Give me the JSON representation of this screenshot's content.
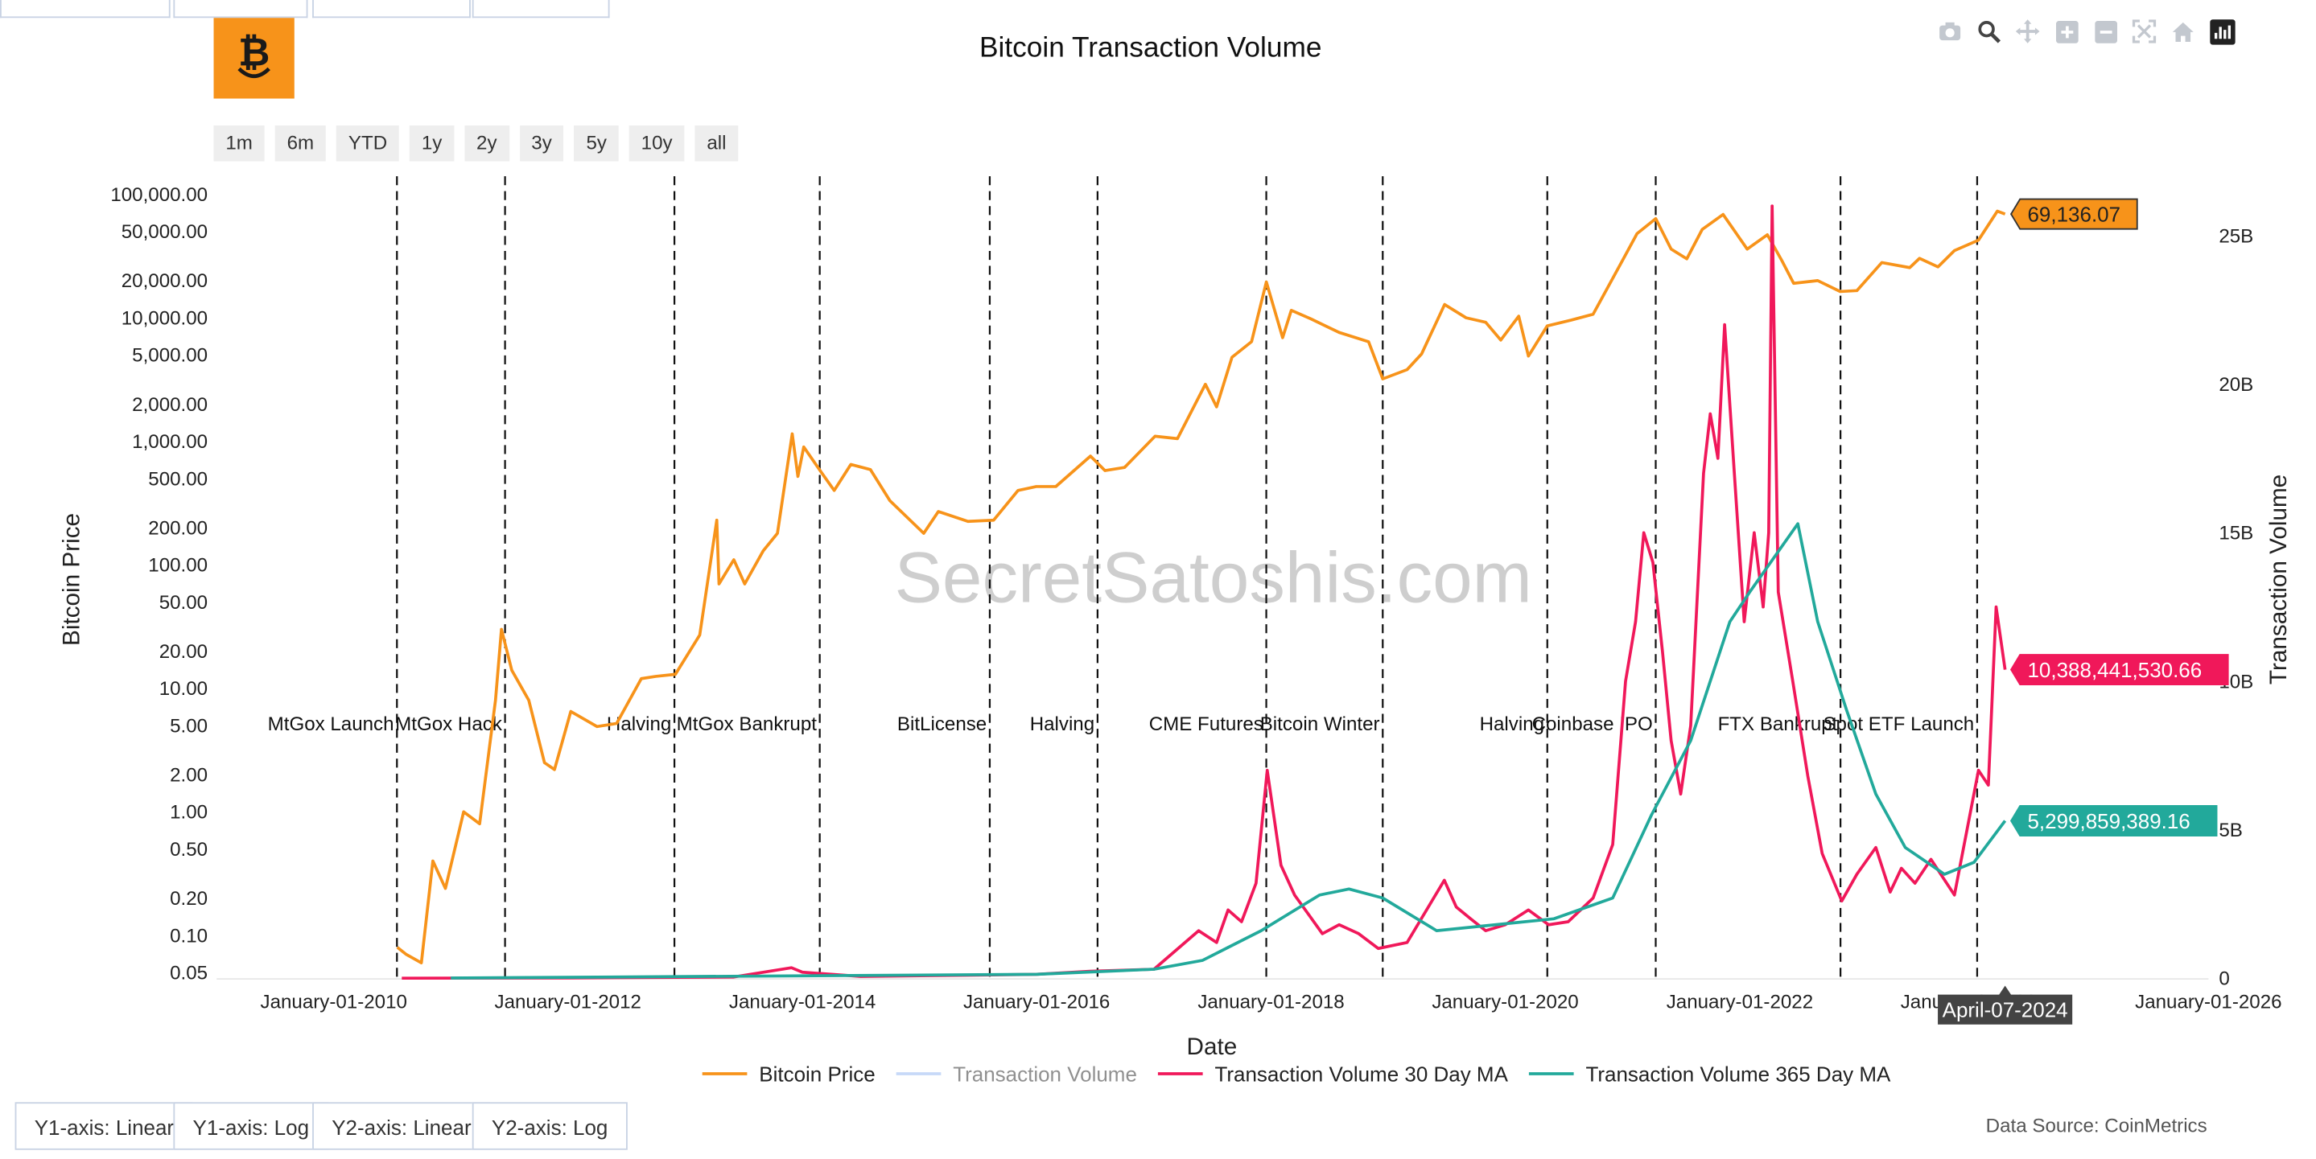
{
  "logo": {
    "icon": "bitcoin-smile-icon",
    "color": "#f7931a"
  },
  "title": "Bitcoin Transaction Volume",
  "range_buttons": [
    "1m",
    "6m",
    "YTD",
    "1y",
    "2y",
    "3y",
    "5y",
    "10y",
    "all"
  ],
  "modebar": [
    "camera-icon",
    "zoom-icon",
    "pan-icon",
    "zoom-in-icon",
    "zoom-out-icon",
    "autoscale-icon",
    "reset-axes-icon",
    "plotly-logo-icon"
  ],
  "axis_buttons": [
    "Y1-axis: Linear",
    "Y1-axis: Log",
    "Y2-axis: Linear",
    "Y2-axis: Log"
  ],
  "data_source": "Data Source: CoinMetrics",
  "watermark": "SecretSatoshis.com",
  "hover_date": "April-07-2024",
  "colors": {
    "price": "#f7931a",
    "volume": "#8fb4f2",
    "ma30": "#f0185a",
    "ma365": "#22a99b",
    "axis_text": "#222222"
  },
  "chart_data": {
    "type": "line",
    "title": "Bitcoin Transaction Volume",
    "xlabel": "Date",
    "ylabel": "Bitcoin Price",
    "y2label": "Transaction Volume",
    "xlim": [
      "2009-01-01",
      "2026-01-01"
    ],
    "x_ticks": [
      "January-01-2010",
      "January-01-2012",
      "January-01-2014",
      "January-01-2016",
      "January-01-2018",
      "January-01-2020",
      "January-01-2022",
      "January-01-2024",
      "January-01-2026"
    ],
    "y_scale": "log",
    "y_ticks": [
      {
        "v": 0.05,
        "t": "0.05"
      },
      {
        "v": 0.1,
        "t": "0.10"
      },
      {
        "v": 0.2,
        "t": "0.20"
      },
      {
        "v": 0.5,
        "t": "0.50"
      },
      {
        "v": 1,
        "t": "1.00"
      },
      {
        "v": 2,
        "t": "2.00"
      },
      {
        "v": 5,
        "t": "5.00"
      },
      {
        "v": 10,
        "t": "10.00"
      },
      {
        "v": 20,
        "t": "20.00"
      },
      {
        "v": 50,
        "t": "50.00"
      },
      {
        "v": 100,
        "t": "100.00"
      },
      {
        "v": 200,
        "t": "200.00"
      },
      {
        "v": 500,
        "t": "500.00"
      },
      {
        "v": 1000,
        "t": "1,000.00"
      },
      {
        "v": 2000,
        "t": "2,000.00"
      },
      {
        "v": 5000,
        "t": "5,000.00"
      },
      {
        "v": 10000,
        "t": "10,000.00"
      },
      {
        "v": 20000,
        "t": "20,000.00"
      },
      {
        "v": 50000,
        "t": "50,000.00"
      },
      {
        "v": 100000,
        "t": "100,000.00"
      }
    ],
    "ylim": [
      0.045,
      140000
    ],
    "y2_scale": "linear",
    "y2lim": [
      0,
      27000000000
    ],
    "y2_ticks": [
      {
        "v": 0,
        "t": "0"
      },
      {
        "v": 5000000000,
        "t": "5B"
      },
      {
        "v": 10000000000,
        "t": "10B"
      },
      {
        "v": 15000000000,
        "t": "15B"
      },
      {
        "v": 20000000000,
        "t": "20B"
      },
      {
        "v": 25000000000,
        "t": "25B"
      }
    ],
    "grid": true,
    "legend_position": "bottom",
    "series": [
      {
        "name": "Bitcoin Price",
        "axis": "y",
        "color": "#f7931a",
        "last_label": "69,136.07",
        "points": [
          [
            "2010-07-18",
            0.08
          ],
          [
            "2010-08-15",
            0.07
          ],
          [
            "2010-10-01",
            0.06
          ],
          [
            "2010-11-06",
            0.4
          ],
          [
            "2010-12-15",
            0.24
          ],
          [
            "2011-02-10",
            1.0
          ],
          [
            "2011-04-01",
            0.8
          ],
          [
            "2011-05-20",
            8
          ],
          [
            "2011-06-08",
            30
          ],
          [
            "2011-07-10",
            14
          ],
          [
            "2011-09-01",
            8
          ],
          [
            "2011-10-20",
            2.5
          ],
          [
            "2011-11-20",
            2.2
          ],
          [
            "2012-01-10",
            6.5
          ],
          [
            "2012-04-01",
            4.9
          ],
          [
            "2012-06-01",
            5.2
          ],
          [
            "2012-08-17",
            12
          ],
          [
            "2012-10-01",
            12.5
          ],
          [
            "2012-12-01",
            13
          ],
          [
            "2013-02-15",
            27
          ],
          [
            "2013-04-09",
            230
          ],
          [
            "2013-04-16",
            70
          ],
          [
            "2013-06-01",
            110
          ],
          [
            "2013-07-05",
            70
          ],
          [
            "2013-09-01",
            130
          ],
          [
            "2013-10-15",
            180
          ],
          [
            "2013-11-30",
            1150
          ],
          [
            "2013-12-18",
            520
          ],
          [
            "2014-01-05",
            900
          ],
          [
            "2014-03-01",
            560
          ],
          [
            "2014-04-10",
            400
          ],
          [
            "2014-06-01",
            650
          ],
          [
            "2014-08-01",
            590
          ],
          [
            "2014-10-01",
            330
          ],
          [
            "2015-01-14",
            180
          ],
          [
            "2015-03-01",
            270
          ],
          [
            "2015-06-01",
            225
          ],
          [
            "2015-08-20",
            230
          ],
          [
            "2015-11-04",
            400
          ],
          [
            "2015-12-31",
            430
          ],
          [
            "2016-03-01",
            430
          ],
          [
            "2016-06-17",
            760
          ],
          [
            "2016-08-01",
            580
          ],
          [
            "2016-10-01",
            615
          ],
          [
            "2017-01-04",
            1100
          ],
          [
            "2017-03-15",
            1050
          ],
          [
            "2017-06-10",
            2900
          ],
          [
            "2017-07-15",
            1900
          ],
          [
            "2017-09-01",
            4800
          ],
          [
            "2017-11-01",
            6400
          ],
          [
            "2017-12-17",
            19500
          ],
          [
            "2018-02-06",
            6900
          ],
          [
            "2018-03-05",
            11500
          ],
          [
            "2018-05-05",
            9800
          ],
          [
            "2018-08-01",
            7600
          ],
          [
            "2018-11-01",
            6400
          ],
          [
            "2018-12-15",
            3200
          ],
          [
            "2019-03-01",
            3800
          ],
          [
            "2019-04-15",
            5100
          ],
          [
            "2019-06-26",
            12800
          ],
          [
            "2019-09-01",
            10000
          ],
          [
            "2019-11-01",
            9200
          ],
          [
            "2019-12-18",
            6600
          ],
          [
            "2020-02-12",
            10300
          ],
          [
            "2020-03-13",
            4900
          ],
          [
            "2020-05-11",
            8600
          ],
          [
            "2020-07-25",
            9600
          ],
          [
            "2020-10-01",
            10700
          ],
          [
            "2020-12-31",
            29000
          ],
          [
            "2021-02-15",
            48000
          ],
          [
            "2021-04-14",
            63500
          ],
          [
            "2021-06-01",
            36000
          ],
          [
            "2021-07-20",
            30000
          ],
          [
            "2021-09-06",
            52000
          ],
          [
            "2021-11-10",
            68700
          ],
          [
            "2022-01-24",
            36000
          ],
          [
            "2022-03-28",
            47000
          ],
          [
            "2022-05-12",
            29000
          ],
          [
            "2022-06-18",
            19000
          ],
          [
            "2022-09-01",
            20000
          ],
          [
            "2022-11-10",
            16300
          ],
          [
            "2023-01-01",
            16600
          ],
          [
            "2023-03-20",
            28000
          ],
          [
            "2023-06-15",
            25500
          ],
          [
            "2023-07-15",
            30300
          ],
          [
            "2023-09-11",
            25800
          ],
          [
            "2023-11-01",
            35000
          ],
          [
            "2024-01-15",
            42500
          ],
          [
            "2024-03-14",
            73000
          ],
          [
            "2024-04-07",
            69136.07
          ]
        ]
      },
      {
        "name": "Transaction Volume",
        "axis": "y2",
        "color": "#8fb4f2",
        "visible": false,
        "points": []
      },
      {
        "name": "Transaction Volume 30 Day MA",
        "axis": "y2",
        "color": "#f0185a",
        "last_label": "10,388,441,530.66",
        "points": [
          [
            "2010-08-01",
            2000000
          ],
          [
            "2012-01-01",
            10000000
          ],
          [
            "2013-06-01",
            40000000
          ],
          [
            "2013-11-28",
            350000000
          ],
          [
            "2014-01-01",
            200000000
          ],
          [
            "2014-07-01",
            60000000
          ],
          [
            "2015-06-01",
            100000000
          ],
          [
            "2016-01-01",
            130000000
          ],
          [
            "2016-06-15",
            230000000
          ],
          [
            "2017-01-01",
            300000000
          ],
          [
            "2017-05-20",
            1600000000
          ],
          [
            "2017-07-15",
            1200000000
          ],
          [
            "2017-08-20",
            2300000000
          ],
          [
            "2017-10-01",
            1900000000
          ],
          [
            "2017-11-15",
            3200000000
          ],
          [
            "2017-12-20",
            7000000000
          ],
          [
            "2018-02-01",
            3800000000
          ],
          [
            "2018-03-15",
            2800000000
          ],
          [
            "2018-05-01",
            2100000000
          ],
          [
            "2018-06-10",
            1500000000
          ],
          [
            "2018-08-01",
            1800000000
          ],
          [
            "2018-10-01",
            1500000000
          ],
          [
            "2018-12-01",
            1000000000
          ],
          [
            "2019-03-01",
            1200000000
          ],
          [
            "2019-06-25",
            3300000000
          ],
          [
            "2019-08-01",
            2400000000
          ],
          [
            "2019-09-15",
            2000000000
          ],
          [
            "2019-11-01",
            1600000000
          ],
          [
            "2020-01-01",
            1800000000
          ],
          [
            "2020-03-13",
            2300000000
          ],
          [
            "2020-05-15",
            1800000000
          ],
          [
            "2020-07-15",
            1900000000
          ],
          [
            "2020-10-01",
            2700000000
          ],
          [
            "2020-12-01",
            4500000000
          ],
          [
            "2021-01-10",
            10000000000
          ],
          [
            "2021-02-10",
            12000000000
          ],
          [
            "2021-03-08",
            15000000000
          ],
          [
            "2021-04-05",
            14000000000
          ],
          [
            "2021-05-05",
            11000000000
          ],
          [
            "2021-06-01",
            8000000000
          ],
          [
            "2021-07-01",
            6200000000
          ],
          [
            "2021-08-01",
            8500000000
          ],
          [
            "2021-09-10",
            17000000000
          ],
          [
            "2021-10-01",
            19000000000
          ],
          [
            "2021-10-25",
            17500000000
          ],
          [
            "2021-11-15",
            22000000000
          ],
          [
            "2021-12-15",
            17000000000
          ],
          [
            "2022-01-15",
            12000000000
          ],
          [
            "2022-02-15",
            15000000000
          ],
          [
            "2022-03-15",
            12500000000
          ],
          [
            "2022-04-01",
            15000000000
          ],
          [
            "2022-04-12",
            26000000000
          ],
          [
            "2022-05-01",
            13000000000
          ],
          [
            "2022-06-15",
            10000000000
          ],
          [
            "2022-08-01",
            6800000000
          ],
          [
            "2022-09-15",
            4200000000
          ],
          [
            "2022-11-15",
            2600000000
          ],
          [
            "2023-01-01",
            3500000000
          ],
          [
            "2023-03-01",
            4400000000
          ],
          [
            "2023-04-15",
            2900000000
          ],
          [
            "2023-05-20",
            3700000000
          ],
          [
            "2023-07-01",
            3200000000
          ],
          [
            "2023-08-20",
            4000000000
          ],
          [
            "2023-11-01",
            2800000000
          ],
          [
            "2024-01-15",
            7000000000
          ],
          [
            "2024-02-15",
            6500000000
          ],
          [
            "2024-03-10",
            12500000000
          ],
          [
            "2024-04-07",
            10388441530.66
          ]
        ]
      },
      {
        "name": "Transaction Volume 365 Day MA",
        "axis": "y2",
        "color": "#22a99b",
        "last_label": "5,299,859,389.16",
        "points": [
          [
            "2011-01-01",
            5000000
          ],
          [
            "2014-01-01",
            80000000
          ],
          [
            "2016-01-01",
            130000000
          ],
          [
            "2017-01-01",
            300000000
          ],
          [
            "2017-06-01",
            600000000
          ],
          [
            "2017-12-01",
            1600000000
          ],
          [
            "2018-06-01",
            2800000000
          ],
          [
            "2018-09-01",
            3000000000
          ],
          [
            "2018-12-15",
            2700000000
          ],
          [
            "2019-06-01",
            1600000000
          ],
          [
            "2019-12-01",
            1800000000
          ],
          [
            "2020-06-01",
            2000000000
          ],
          [
            "2020-12-01",
            2700000000
          ],
          [
            "2021-04-01",
            5500000000
          ],
          [
            "2021-08-01",
            8000000000
          ],
          [
            "2021-12-01",
            12000000000
          ],
          [
            "2022-02-01",
            13000000000
          ],
          [
            "2022-07-01",
            15300000000
          ],
          [
            "2022-09-01",
            12000000000
          ],
          [
            "2022-12-01",
            9000000000
          ],
          [
            "2023-03-01",
            6200000000
          ],
          [
            "2023-06-01",
            4400000000
          ],
          [
            "2023-10-01",
            3500000000
          ],
          [
            "2024-01-01",
            3900000000
          ],
          [
            "2024-04-07",
            5299859389.16
          ]
        ]
      }
    ],
    "events": [
      {
        "date": "2010-07-17",
        "label": "MtGox Launch"
      },
      {
        "date": "2011-06-19",
        "label": "MtGox Hack"
      },
      {
        "date": "2012-11-28",
        "label": "Halving"
      },
      {
        "date": "2014-02-24",
        "label": "MtGox Bankrupt"
      },
      {
        "date": "2015-08-08",
        "label": "BitLicense"
      },
      {
        "date": "2016-07-09",
        "label": "Halving"
      },
      {
        "date": "2017-12-17",
        "label": "CME Futures"
      },
      {
        "date": "2018-12-15",
        "label": "Bitcoin Winter"
      },
      {
        "date": "2020-05-11",
        "label": "Halving"
      },
      {
        "date": "2021-04-14",
        "label": "Coinbase IPO"
      },
      {
        "date": "2022-11-11",
        "label": "FTX Bankrupt"
      },
      {
        "date": "2024-01-11",
        "label": "Spot ETF Launch"
      }
    ]
  }
}
